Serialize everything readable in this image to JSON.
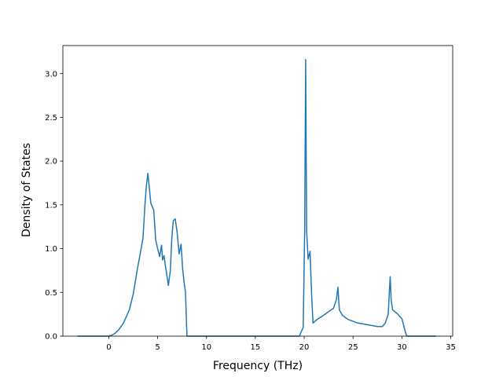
{
  "chart_data": {
    "type": "line",
    "title": "",
    "xlabel": "Frequency (THz)",
    "ylabel": "Density of States",
    "xlim": [
      -4.7,
      35.2
    ],
    "ylim": [
      0.0,
      3.32
    ],
    "xticks": [
      0,
      5,
      10,
      15,
      20,
      25,
      30,
      35
    ],
    "yticks": [
      0.0,
      0.5,
      1.0,
      1.5,
      2.0,
      2.5,
      3.0
    ],
    "xtick_labels": [
      "0",
      "5",
      "10",
      "15",
      "20",
      "25",
      "30",
      "35"
    ],
    "ytick_labels": [
      "0.0",
      "0.5",
      "1.0",
      "1.5",
      "2.0",
      "2.5",
      "3.0"
    ],
    "grid": false,
    "colors": {
      "line": "#1f77b4",
      "axes": "#000000",
      "background": "#ffffff"
    },
    "series": [
      {
        "x": [
          -3.2,
          0.0,
          0.3,
          0.6,
          1.0,
          1.5,
          1.9,
          2.1,
          2.5,
          2.9,
          3.2,
          3.5,
          3.7,
          3.85,
          4.0,
          4.1,
          4.3,
          4.6,
          4.8,
          5.0,
          5.2,
          5.4,
          5.5,
          5.65,
          5.8,
          5.9,
          6.1,
          6.3,
          6.45,
          6.6,
          6.8,
          7.0,
          7.2,
          7.4,
          7.55,
          7.7,
          7.85,
          8.0,
          8.2,
          8.3,
          8.45,
          9.0,
          10.0,
          15.0,
          19.5,
          19.9,
          20.05,
          20.15,
          20.25,
          20.4,
          20.6,
          20.75,
          20.9,
          21.1,
          21.3,
          21.6,
          22.0,
          22.5,
          23.0,
          23.3,
          23.45,
          23.6,
          23.9,
          24.5,
          25.5,
          26.5,
          27.5,
          28.0,
          28.3,
          28.6,
          28.8,
          28.9,
          29.05,
          29.5,
          30.0,
          30.35,
          30.5,
          31.0,
          33.5
        ],
        "y": [
          0.0,
          0.0,
          0.01,
          0.03,
          0.07,
          0.15,
          0.25,
          0.3,
          0.48,
          0.75,
          0.93,
          1.12,
          1.5,
          1.72,
          1.86,
          1.75,
          1.52,
          1.44,
          1.1,
          1.0,
          0.91,
          1.04,
          0.87,
          0.92,
          0.8,
          0.73,
          0.58,
          0.75,
          1.12,
          1.32,
          1.34,
          1.18,
          0.94,
          1.05,
          0.78,
          0.62,
          0.5,
          0.0,
          0.0,
          0.0,
          0.0,
          0.0,
          0.0,
          0.0,
          0.0,
          0.1,
          1.2,
          3.16,
          1.2,
          0.88,
          0.97,
          0.5,
          0.15,
          0.17,
          0.19,
          0.21,
          0.24,
          0.28,
          0.32,
          0.42,
          0.56,
          0.3,
          0.24,
          0.19,
          0.15,
          0.13,
          0.11,
          0.11,
          0.15,
          0.25,
          0.68,
          0.42,
          0.3,
          0.26,
          0.2,
          0.05,
          0.0,
          0.0,
          0.0
        ]
      }
    ]
  }
}
